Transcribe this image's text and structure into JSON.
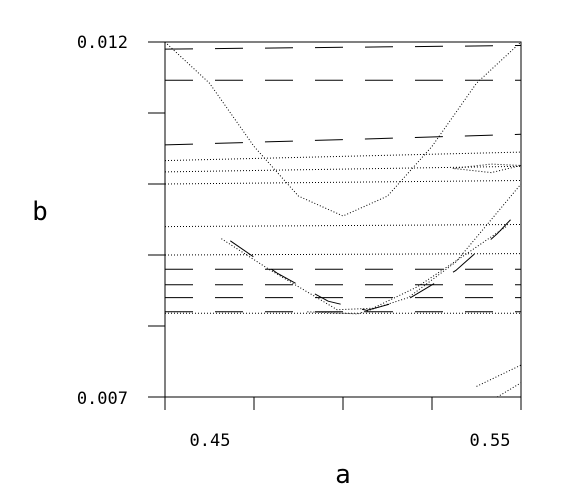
{
  "chart_data": {
    "type": "line",
    "xlabel": "a",
    "ylabel": "b",
    "x_ticklabels": [
      "0.45",
      "0.55"
    ],
    "y_ticklabels": [
      "0.007",
      "0.012"
    ],
    "xlim": [
      0.44,
      0.56
    ],
    "ylim": [
      0.007,
      0.012
    ],
    "x_ticks": [
      0.44,
      0.47,
      0.5,
      0.53,
      0.56
    ],
    "y_ticks": [
      0.007,
      0.008,
      0.009,
      0.01,
      0.011,
      0.012
    ],
    "grid": false,
    "series": [
      {
        "style": "dotted",
        "points": [
          [
            0.44,
            0.012
          ],
          [
            0.455,
            0.01142
          ],
          [
            0.47,
            0.01053
          ],
          [
            0.485,
            0.00983
          ],
          [
            0.5,
            0.00955
          ],
          [
            0.515,
            0.00983
          ],
          [
            0.53,
            0.01053
          ],
          [
            0.545,
            0.01142
          ],
          [
            0.56,
            0.012
          ]
        ]
      },
      {
        "style": "dotted",
        "points": [
          [
            0.459,
            0.00923
          ],
          [
            0.475,
            0.0088
          ],
          [
            0.49,
            0.00843
          ],
          [
            0.498,
            0.00823
          ],
          [
            0.51,
            0.00825
          ],
          [
            0.525,
            0.00855
          ],
          [
            0.54,
            0.00897
          ],
          [
            0.555,
            0.0094
          ]
        ]
      },
      {
        "style": "dashed",
        "points": [
          [
            0.462,
            0.0092
          ],
          [
            0.478,
            0.00874
          ],
          [
            0.495,
            0.00835
          ],
          [
            0.508,
            0.00822
          ],
          [
            0.522,
            0.00838
          ],
          [
            0.538,
            0.00878
          ],
          [
            0.552,
            0.0093
          ],
          [
            0.56,
            0.00965
          ]
        ]
      },
      {
        "style": "dotted",
        "points": [
          [
            0.488,
            0.0082
          ],
          [
            0.505,
            0.00817
          ],
          [
            0.522,
            0.0084
          ],
          [
            0.538,
            0.0089
          ],
          [
            0.552,
            0.0096
          ],
          [
            0.56,
            0.01
          ]
        ]
      },
      {
        "style": "dotted",
        "points": [
          [
            0.545,
            0.00715
          ],
          [
            0.56,
            0.00745
          ]
        ]
      },
      {
        "style": "dotted",
        "points": [
          [
            0.552,
            0.007
          ],
          [
            0.56,
            0.0072
          ]
        ]
      },
      {
        "style": "dotted",
        "points": [
          [
            0.537,
            0.01022
          ],
          [
            0.55,
            0.01028
          ],
          [
            0.56,
            0.01026
          ],
          [
            0.55,
            0.01016
          ],
          [
            0.537,
            0.01022
          ]
        ]
      },
      {
        "style": "dashed",
        "points": [
          [
            0.44,
            0.0082
          ],
          [
            0.56,
            0.0082
          ]
        ]
      },
      {
        "style": "dotted",
        "points": [
          [
            0.44,
            0.00818
          ],
          [
            0.56,
            0.00818
          ]
        ]
      },
      {
        "style": "dashed",
        "points": [
          [
            0.44,
            0.0084
          ],
          [
            0.56,
            0.0084
          ]
        ]
      },
      {
        "style": "dashed",
        "points": [
          [
            0.44,
            0.00858
          ],
          [
            0.56,
            0.00858
          ]
        ]
      },
      {
        "style": "dashed",
        "points": [
          [
            0.44,
            0.0088
          ],
          [
            0.56,
            0.0088
          ]
        ]
      },
      {
        "style": "dotted",
        "points": [
          [
            0.44,
            0.009
          ],
          [
            0.56,
            0.00902
          ]
        ]
      },
      {
        "style": "dotted",
        "points": [
          [
            0.44,
            0.0094
          ],
          [
            0.56,
            0.00943
          ]
        ]
      },
      {
        "style": "dotted",
        "points": [
          [
            0.44,
            0.01
          ],
          [
            0.56,
            0.01005
          ]
        ]
      },
      {
        "style": "dotted",
        "points": [
          [
            0.44,
            0.01017
          ],
          [
            0.56,
            0.01025
          ]
        ]
      },
      {
        "style": "dotted",
        "points": [
          [
            0.44,
            0.01033
          ],
          [
            0.56,
            0.01045
          ]
        ]
      },
      {
        "style": "dashed",
        "points": [
          [
            0.44,
            0.01055
          ],
          [
            0.56,
            0.0107
          ]
        ]
      },
      {
        "style": "dashed",
        "points": [
          [
            0.44,
            0.01146
          ],
          [
            0.56,
            0.01146
          ]
        ]
      },
      {
        "style": "dashed",
        "points": [
          [
            0.44,
            0.0119
          ],
          [
            0.56,
            0.01195
          ]
        ]
      }
    ]
  }
}
